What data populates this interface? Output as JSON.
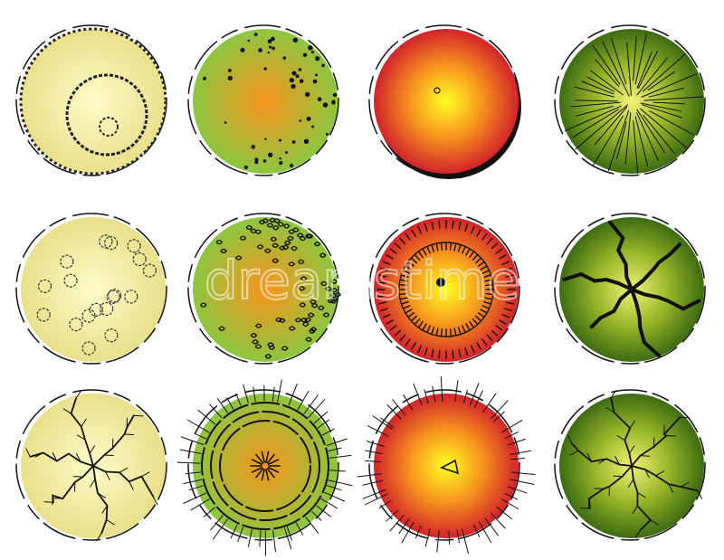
{
  "watermark": "dreamstime",
  "palettes": {
    "pale_yellow": [
      "#fdfbc8",
      "#e8e08a"
    ],
    "green_orange": [
      "#f7941d",
      "#8dc63f"
    ],
    "red_yellow": [
      "#ffff22",
      "#f7941d",
      "#d2232a"
    ],
    "dark_green": [
      "#f2f27a",
      "#9ab828",
      "#3d6b12"
    ]
  },
  "symbols": [
    {
      "name": "tree-symbol-pale-shrub-rings",
      "palette": "pale_yellow",
      "style": "scalloped-rings"
    },
    {
      "name": "tree-symbol-green-speckled",
      "palette": "green_orange",
      "style": "speckled"
    },
    {
      "name": "tree-symbol-red-shadowed",
      "palette": "red_yellow",
      "style": "shadow"
    },
    {
      "name": "tree-symbol-dark-green-radial",
      "palette": "dark_green",
      "style": "radial-lines"
    },
    {
      "name": "tree-symbol-pale-flowers",
      "palette": "pale_yellow",
      "style": "flowers"
    },
    {
      "name": "tree-symbol-green-leafy",
      "palette": "green_orange",
      "style": "leafy"
    },
    {
      "name": "tree-symbol-red-ringed-ticks",
      "palette": "red_yellow",
      "style": "ticked-rings"
    },
    {
      "name": "tree-symbol-dark-green-branches",
      "palette": "dark_green",
      "style": "cracked-branches"
    },
    {
      "name": "tree-symbol-pale-branches",
      "palette": "pale_yellow",
      "style": "branches"
    },
    {
      "name": "tree-symbol-green-concentric",
      "palette": "green_orange",
      "style": "concentric-spiky"
    },
    {
      "name": "tree-symbol-red-spiky",
      "palette": "red_yellow",
      "style": "spiky"
    },
    {
      "name": "tree-symbol-dark-green-fern",
      "palette": "dark_green",
      "style": "fern"
    }
  ]
}
